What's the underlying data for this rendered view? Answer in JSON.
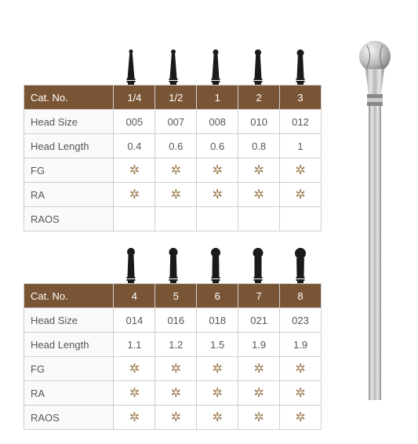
{
  "header_label": "Cat. No.",
  "rows": [
    "Head Size",
    "Head Length",
    "FG",
    "RA",
    "RAOS"
  ],
  "star": "✲",
  "table1": {
    "cats": [
      "1/4",
      "1/2",
      "1",
      "2",
      "3"
    ],
    "head_size": [
      "005",
      "007",
      "008",
      "010",
      "012"
    ],
    "head_length": [
      "0.4",
      "0.6",
      "0.6",
      "0.8",
      "1"
    ],
    "fg": [
      true,
      true,
      true,
      true,
      true
    ],
    "ra": [
      true,
      true,
      true,
      true,
      true
    ],
    "raos": [
      false,
      false,
      false,
      false,
      false
    ],
    "bur_ball_r": [
      2.5,
      3,
      3.5,
      4,
      4.5
    ]
  },
  "table2": {
    "cats": [
      "4",
      "5",
      "6",
      "7",
      "8"
    ],
    "head_size": [
      "014",
      "016",
      "018",
      "021",
      "023"
    ],
    "head_length": [
      "1.1",
      "1.2",
      "1.5",
      "1.9",
      "1.9"
    ],
    "fg": [
      true,
      true,
      true,
      true,
      true
    ],
    "ra": [
      true,
      true,
      true,
      true,
      true
    ],
    "raos": [
      true,
      true,
      true,
      true,
      true
    ],
    "bur_ball_r": [
      5,
      5.5,
      6,
      6.5,
      7
    ]
  },
  "colors": {
    "header_bg": "#7a5535",
    "header_fg": "#ffffff",
    "border": "#cfcfcf",
    "text": "#555555",
    "star": "#9a7a4f"
  }
}
